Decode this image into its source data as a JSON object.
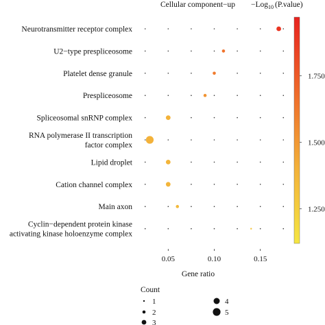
{
  "chart_data": {
    "type": "scatter",
    "title": "Cellular component−up",
    "xlabel": "Gene ratio",
    "ylabel": "",
    "xlim": [
      0.02,
      0.18
    ],
    "xticks": [
      0.05,
      0.1,
      0.15
    ],
    "xtick_labels": [
      "0.05",
      "0.10",
      "0.15"
    ],
    "grid_x_positions": [
      0.025,
      0.05,
      0.075,
      0.1,
      0.125,
      0.15,
      0.175
    ],
    "grid": "dotted",
    "categories": [
      "Neurotransmitter receptor complex",
      "U2−type prespliceosome",
      "Platelet dense granule",
      "Prespliceosome",
      "Spliceosomal snRNP complex",
      "RNA polymerase II transcription factor complex",
      "Lipid droplet",
      "Cation channel complex",
      "Main axon",
      "Cyclin−dependent protein kinase activating kinase holoenzyme complex"
    ],
    "category_lines": [
      [
        "Neurotransmitter receptor complex"
      ],
      [
        "U2−type prespliceosome"
      ],
      [
        "Platelet dense granule"
      ],
      [
        "Prespliceosome"
      ],
      [
        "Spliceosomal snRNP complex"
      ],
      [
        "RNA polymerase II transcription",
        "factor complex"
      ],
      [
        "Lipid droplet"
      ],
      [
        "Cation channel complex"
      ],
      [
        "Main axon"
      ],
      [
        "Cyclin−dependent protein kinase",
        "activating kinase holoenzyme complex"
      ]
    ],
    "points": [
      {
        "term": "Neurotransmitter receptor complex",
        "gene_ratio": 0.17,
        "count": 3,
        "neg_log10_p": 1.9
      },
      {
        "term": "U2−type prespliceosome",
        "gene_ratio": 0.11,
        "count": 2,
        "neg_log10_p": 1.65
      },
      {
        "term": "Platelet dense granule",
        "gene_ratio": 0.1,
        "count": 2,
        "neg_log10_p": 1.62
      },
      {
        "term": "Prespliceosome",
        "gene_ratio": 0.09,
        "count": 2,
        "neg_log10_p": 1.52
      },
      {
        "term": "Spliceosomal snRNP complex",
        "gene_ratio": 0.05,
        "count": 3,
        "neg_log10_p": 1.4
      },
      {
        "term": "RNA polymerase II transcription factor complex",
        "gene_ratio": 0.03,
        "count": 5,
        "neg_log10_p": 1.4
      },
      {
        "term": "Lipid droplet",
        "gene_ratio": 0.05,
        "count": 3,
        "neg_log10_p": 1.38
      },
      {
        "term": "Cation channel complex",
        "gene_ratio": 0.05,
        "count": 3,
        "neg_log10_p": 1.38
      },
      {
        "term": "Main axon",
        "gene_ratio": 0.06,
        "count": 2,
        "neg_log10_p": 1.36
      },
      {
        "term": "Cyclin−dependent protein kinase activating kinase holoenzyme complex",
        "gene_ratio": 0.14,
        "count": 1,
        "neg_log10_p": 1.3
      }
    ],
    "color_legend": {
      "title_prefix": "−Log",
      "title_sub": "10",
      "title_suffix": "(P.value)",
      "range": [
        1.12,
        1.97
      ],
      "ticks": [
        1.25,
        1.5,
        1.75
      ],
      "tick_labels": [
        "1.250",
        "1.500",
        "1.750"
      ],
      "colors": [
        "#f5e642",
        "#f3b13a",
        "#ef6a2a",
        "#e8231f"
      ],
      "placement": "right"
    },
    "size_legend": {
      "title": "Count",
      "entries": [
        {
          "label": "1",
          "count": 1
        },
        {
          "label": "2",
          "count": 2
        },
        {
          "label": "3",
          "count": 3
        },
        {
          "label": "4",
          "count": 4
        },
        {
          "label": "5",
          "count": 5
        }
      ],
      "placement": "bottom"
    }
  }
}
